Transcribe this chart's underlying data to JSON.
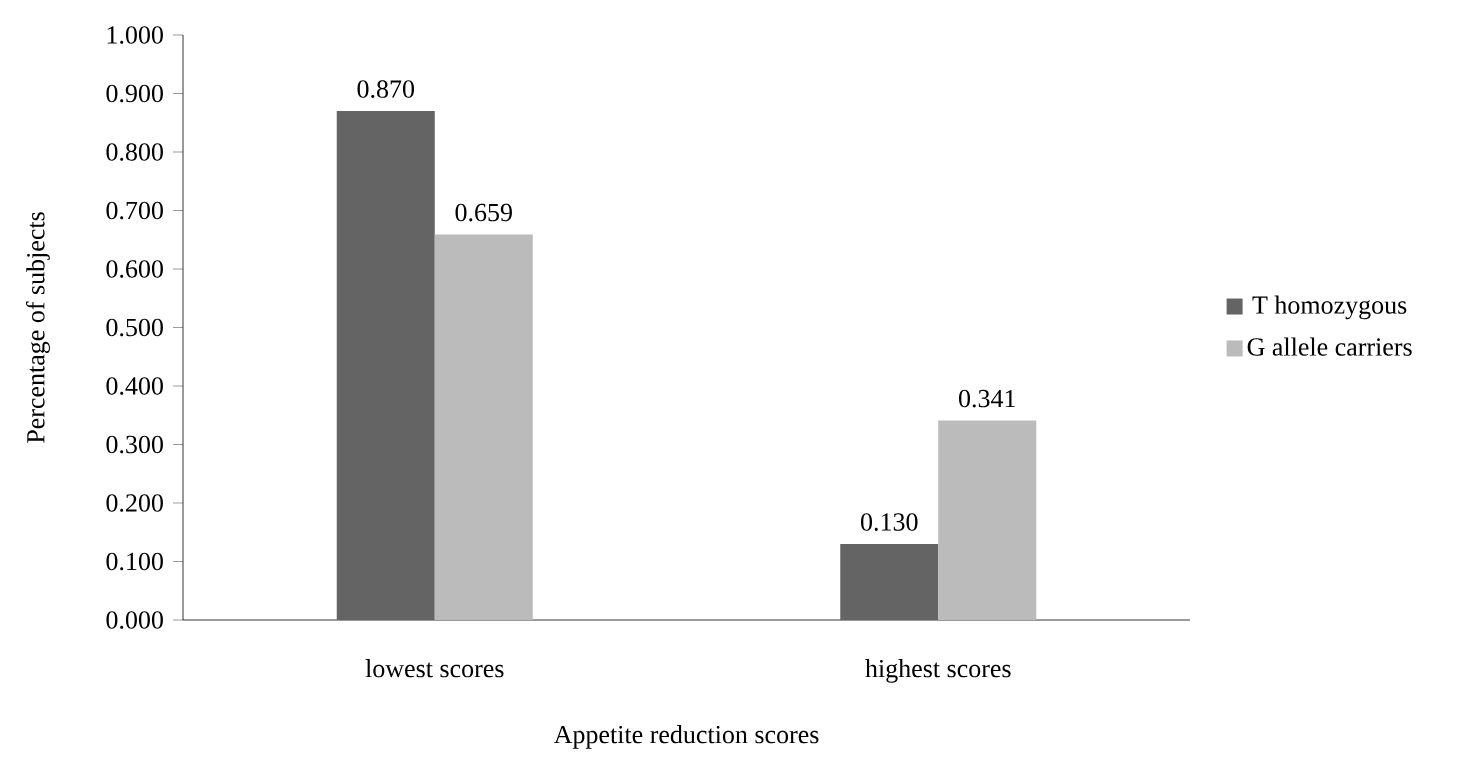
{
  "chart_data": {
    "type": "bar",
    "xlabel": "Appetite reduction scores",
    "ylabel": "Percentage  of subjects",
    "categories": [
      "lowest scores",
      "highest scores"
    ],
    "series": [
      {
        "name": "T homozygous",
        "color": "#646464",
        "values": [
          0.87,
          0.13
        ],
        "value_labels": [
          "0.870",
          "0.130"
        ]
      },
      {
        "name": "G allele carriers",
        "color": "#bbbbbb",
        "values": [
          0.659,
          0.341
        ],
        "value_labels": [
          "0.659",
          "0.341"
        ]
      }
    ],
    "ylim": [
      0,
      1
    ],
    "yticks": [
      {
        "value": 0,
        "label": "0.000"
      },
      {
        "value": 0.1,
        "label": "0.100"
      },
      {
        "value": 0.2,
        "label": "0.200"
      },
      {
        "value": 0.3,
        "label": "0.300"
      },
      {
        "value": 0.4,
        "label": "0.400"
      },
      {
        "value": 0.5,
        "label": "0.500"
      },
      {
        "value": 0.6,
        "label": "0.600"
      },
      {
        "value": 0.7,
        "label": "0.700"
      },
      {
        "value": 0.8,
        "label": "0.800"
      },
      {
        "value": 0.9,
        "label": "0.900"
      },
      {
        "value": 1,
        "label": "1.000"
      }
    ],
    "grid": false,
    "legend": "right"
  }
}
